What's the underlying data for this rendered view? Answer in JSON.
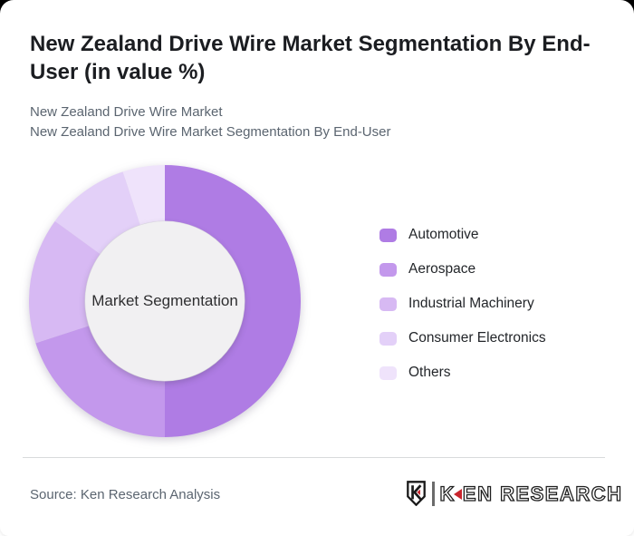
{
  "header": {
    "title": "New Zealand Drive Wire Market Segmentation By End-User (in value %)",
    "subtitle_lines": [
      "New Zealand Drive Wire Market",
      "New Zealand Drive Wire Market Segmentation By End-User"
    ]
  },
  "chart_data": {
    "type": "pie",
    "variant": "donut",
    "title": "New Zealand Drive Wire Market Segmentation By End-User (in value %)",
    "center_label": "Market Segmentation",
    "categories": [
      "Automotive",
      "Aerospace",
      "Industrial Machinery",
      "Consumer Electronics",
      "Others"
    ],
    "values": [
      50,
      20,
      15,
      10,
      5
    ],
    "values_note": "percent of value, estimated from arc angles; no numeric data labels shown on chart",
    "colors": [
      "#af7ce4",
      "#c398ec",
      "#d7b9f3",
      "#e3d0f8",
      "#efe3fb"
    ],
    "center_fill": "#f1f0f2",
    "start_angle_deg": 0,
    "direction": "clockwise",
    "inner_radius_ratio": 0.59,
    "legend_position": "right",
    "data_labels_shown": false
  },
  "footer": {
    "source": "Source: Ken Research Analysis",
    "logo_text_k": "K",
    "logo_text_rest": "EN RESEARCH",
    "logo_accent_color": "#c9252d"
  }
}
